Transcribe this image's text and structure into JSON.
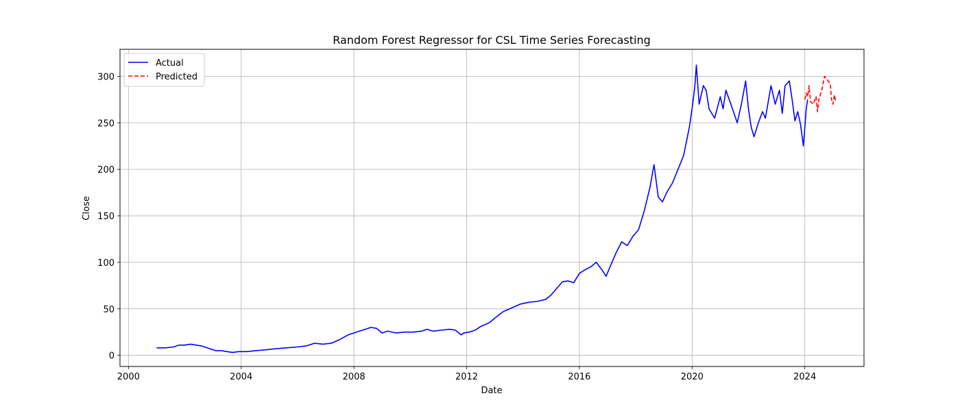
{
  "chart_data": {
    "type": "line",
    "title": "Random Forest Regressor for CSL Time Series Forecasting",
    "xlabel": "Date",
    "ylabel": "Close",
    "xlim": [
      1999.7,
      2026.1
    ],
    "ylim": [
      -12,
      329
    ],
    "grid": true,
    "legend_position": "top-left",
    "x_ticks": [
      2000,
      2004,
      2008,
      2012,
      2016,
      2020,
      2024
    ],
    "x_tick_labels": [
      "2000",
      "2004",
      "2008",
      "2012",
      "2016",
      "2020",
      "2024"
    ],
    "y_ticks": [
      0,
      50,
      100,
      150,
      200,
      250,
      300
    ],
    "y_tick_labels": [
      "0",
      "50",
      "100",
      "150",
      "200",
      "250",
      "300"
    ],
    "series": [
      {
        "name": "Actual",
        "color": "#0000ff",
        "style": "solid",
        "points": [
          [
            2001.0,
            8
          ],
          [
            2001.3,
            8
          ],
          [
            2001.6,
            9
          ],
          [
            2001.8,
            11
          ],
          [
            2002.0,
            11
          ],
          [
            2002.2,
            12
          ],
          [
            2002.4,
            11
          ],
          [
            2002.6,
            10
          ],
          [
            2002.9,
            7
          ],
          [
            2003.1,
            5
          ],
          [
            2003.3,
            5
          ],
          [
            2003.5,
            4
          ],
          [
            2003.7,
            3
          ],
          [
            2003.9,
            4
          ],
          [
            2004.2,
            4
          ],
          [
            2004.5,
            5
          ],
          [
            2004.9,
            6
          ],
          [
            2005.2,
            7
          ],
          [
            2005.6,
            8
          ],
          [
            2006.0,
            9
          ],
          [
            2006.3,
            10
          ],
          [
            2006.6,
            13
          ],
          [
            2006.9,
            12
          ],
          [
            2007.2,
            13
          ],
          [
            2007.5,
            17
          ],
          [
            2007.8,
            22
          ],
          [
            2008.0,
            24
          ],
          [
            2008.2,
            26
          ],
          [
            2008.4,
            28
          ],
          [
            2008.6,
            30
          ],
          [
            2008.8,
            29
          ],
          [
            2009.0,
            24
          ],
          [
            2009.2,
            26
          ],
          [
            2009.5,
            24
          ],
          [
            2009.8,
            25
          ],
          [
            2010.1,
            25
          ],
          [
            2010.4,
            26
          ],
          [
            2010.6,
            28
          ],
          [
            2010.8,
            26
          ],
          [
            2011.1,
            27
          ],
          [
            2011.4,
            28
          ],
          [
            2011.6,
            27
          ],
          [
            2011.8,
            22
          ],
          [
            2011.9,
            24
          ],
          [
            2012.1,
            25
          ],
          [
            2012.3,
            27
          ],
          [
            2012.5,
            31
          ],
          [
            2012.8,
            35
          ],
          [
            2013.0,
            40
          ],
          [
            2013.3,
            47
          ],
          [
            2013.6,
            51
          ],
          [
            2013.9,
            55
          ],
          [
            2014.2,
            57
          ],
          [
            2014.5,
            58
          ],
          [
            2014.8,
            60
          ],
          [
            2015.0,
            65
          ],
          [
            2015.2,
            72
          ],
          [
            2015.4,
            79
          ],
          [
            2015.6,
            80
          ],
          [
            2015.8,
            78
          ],
          [
            2016.0,
            88
          ],
          [
            2016.2,
            92
          ],
          [
            2016.4,
            95
          ],
          [
            2016.6,
            100
          ],
          [
            2016.8,
            92
          ],
          [
            2016.95,
            85
          ],
          [
            2017.1,
            96
          ],
          [
            2017.3,
            110
          ],
          [
            2017.5,
            122
          ],
          [
            2017.7,
            118
          ],
          [
            2017.9,
            128
          ],
          [
            2018.1,
            135
          ],
          [
            2018.3,
            155
          ],
          [
            2018.5,
            180
          ],
          [
            2018.65,
            205
          ],
          [
            2018.8,
            170
          ],
          [
            2018.95,
            165
          ],
          [
            2019.1,
            175
          ],
          [
            2019.3,
            185
          ],
          [
            2019.5,
            200
          ],
          [
            2019.7,
            215
          ],
          [
            2019.9,
            245
          ],
          [
            2020.0,
            265
          ],
          [
            2020.1,
            290
          ],
          [
            2020.15,
            312
          ],
          [
            2020.25,
            270
          ],
          [
            2020.4,
            290
          ],
          [
            2020.5,
            285
          ],
          [
            2020.6,
            265
          ],
          [
            2020.8,
            255
          ],
          [
            2021.0,
            278
          ],
          [
            2021.1,
            265
          ],
          [
            2021.2,
            285
          ],
          [
            2021.4,
            268
          ],
          [
            2021.6,
            250
          ],
          [
            2021.75,
            270
          ],
          [
            2021.9,
            295
          ],
          [
            2022.0,
            265
          ],
          [
            2022.1,
            245
          ],
          [
            2022.2,
            235
          ],
          [
            2022.35,
            250
          ],
          [
            2022.5,
            262
          ],
          [
            2022.6,
            255
          ],
          [
            2022.8,
            290
          ],
          [
            2022.95,
            270
          ],
          [
            2023.1,
            285
          ],
          [
            2023.2,
            260
          ],
          [
            2023.3,
            290
          ],
          [
            2023.45,
            295
          ],
          [
            2023.55,
            275
          ],
          [
            2023.65,
            252
          ],
          [
            2023.75,
            262
          ],
          [
            2023.85,
            248
          ],
          [
            2023.95,
            225
          ],
          [
            2024.0,
            245
          ],
          [
            2024.05,
            265
          ],
          [
            2024.1,
            275
          ]
        ]
      },
      {
        "name": "Predicted",
        "color": "#ff0000",
        "style": "dashed",
        "points": [
          [
            2024.0,
            275
          ],
          [
            2024.05,
            282
          ],
          [
            2024.1,
            278
          ],
          [
            2024.15,
            290
          ],
          [
            2024.2,
            273
          ],
          [
            2024.3,
            270
          ],
          [
            2024.4,
            278
          ],
          [
            2024.45,
            262
          ],
          [
            2024.5,
            275
          ],
          [
            2024.6,
            285
          ],
          [
            2024.7,
            300
          ],
          [
            2024.8,
            296
          ],
          [
            2024.9,
            292
          ],
          [
            2024.95,
            275
          ],
          [
            2025.0,
            270
          ],
          [
            2025.05,
            280
          ],
          [
            2025.1,
            272
          ]
        ]
      }
    ]
  }
}
